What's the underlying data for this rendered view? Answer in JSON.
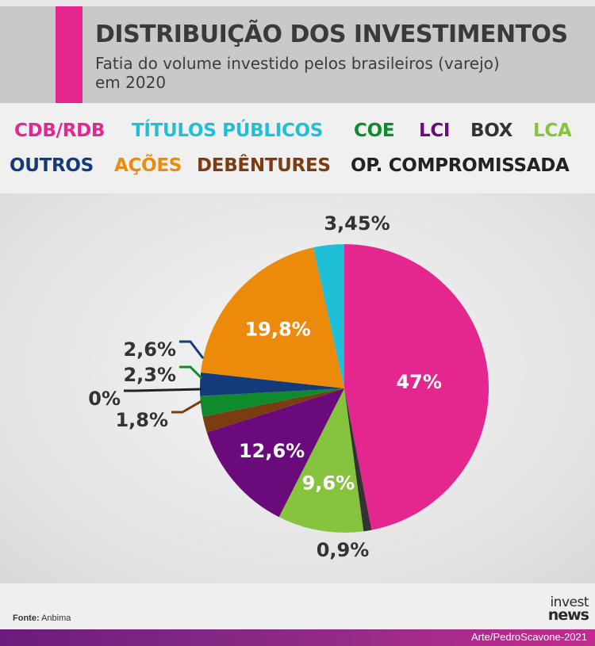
{
  "header": {
    "title": "DISTRIBUIÇÃO DOS INVESTIMENTOS",
    "subtitle": "Fatia do volume investido pelos brasileiros (varejo) em 2020"
  },
  "colors": {
    "cdb_rdb": "#e4278f",
    "titulos_publicos": "#20bfd8",
    "coe": "#0f8a2d",
    "lci": "#6b0a7a",
    "box": "#333333",
    "lca": "#86c440",
    "outros": "#143a7a",
    "acoes": "#ec8a0c",
    "debentures": "#7a3c10",
    "op_compromissada": "#222222"
  },
  "chart_data": {
    "type": "pie",
    "title": "DISTRIBUIÇÃO DOS INVESTIMENTOS",
    "subtitle": "Fatia do volume investido pelos brasileiros (varejo) em 2020",
    "legend": [
      "CDB/RDB",
      "TÍTULOS PÚBLICOS",
      "COE",
      "LCI",
      "BOX",
      "LCA",
      "OUTROS",
      "AÇÕES",
      "DEBÊNTURES",
      "OP. COMPROMISSADA"
    ],
    "slices": [
      {
        "name": "CDB/RDB",
        "value": 47,
        "label": "47%",
        "color": "#e4278f"
      },
      {
        "name": "BOX",
        "value": 0.9,
        "label": "0,9%",
        "color": "#333333"
      },
      {
        "name": "LCA",
        "value": 9.6,
        "label": "9,6%",
        "color": "#86c440"
      },
      {
        "name": "LCI",
        "value": 12.6,
        "label": "12,6%",
        "color": "#6b0a7a"
      },
      {
        "name": "DEBÊNTURES",
        "value": 1.8,
        "label": "1,8%",
        "color": "#7a3c10"
      },
      {
        "name": "OP. COMPROMISSADA",
        "value": 0,
        "label": "0%",
        "color": "#222222"
      },
      {
        "name": "COE",
        "value": 2.3,
        "label": "2,3%",
        "color": "#0f8a2d"
      },
      {
        "name": "OUTROS",
        "value": 2.6,
        "label": "2,6%",
        "color": "#143a7a"
      },
      {
        "name": "AÇÕES",
        "value": 19.8,
        "label": "19,8%",
        "color": "#ec8a0c"
      },
      {
        "name": "TÍTULOS PÚBLICOS",
        "value": 3.45,
        "label": "3,45%",
        "color": "#20bfd8"
      }
    ]
  },
  "footer": {
    "source_label": "Fonte:",
    "source_value": "Anbima",
    "logo_top": "invest",
    "logo_bottom": "news",
    "credit": "Arte/PedroScavone-2021"
  }
}
